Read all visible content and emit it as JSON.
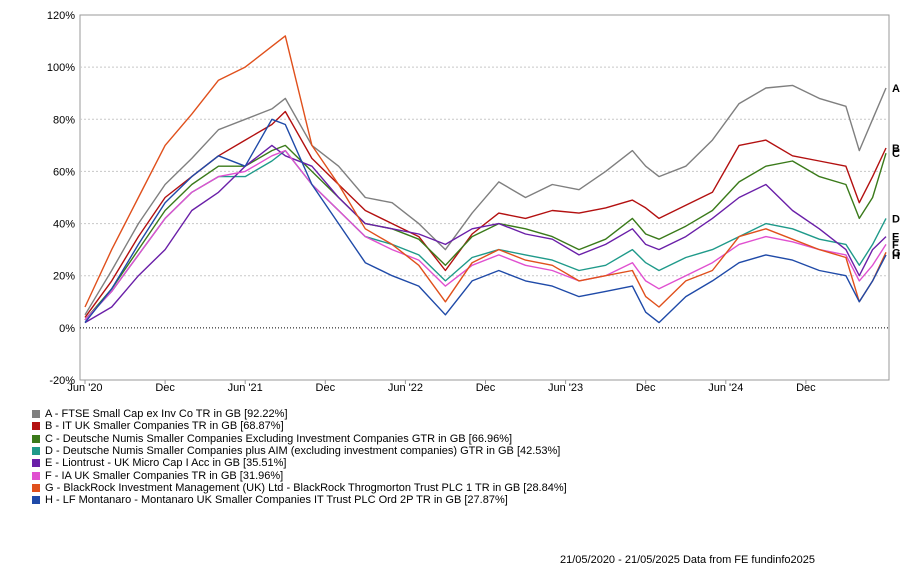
{
  "chart_data": {
    "type": "line",
    "ylim": [
      -20,
      120
    ],
    "yticks": [
      "-20%",
      "0%",
      "20%",
      "40%",
      "60%",
      "80%",
      "100%",
      "120%"
    ],
    "ytick_values": [
      -20,
      0,
      20,
      40,
      60,
      80,
      100,
      120
    ],
    "xticks": [
      "Jun '20",
      "Dec",
      "Jun '21",
      "Dec",
      "Jun '22",
      "Dec",
      "Jun '23",
      "Dec",
      "Jun '24",
      "Dec"
    ],
    "xtick_months": [
      0,
      6,
      12,
      18,
      24,
      30,
      36,
      42,
      48,
      54
    ],
    "x_months": [
      0,
      2,
      4,
      6,
      8,
      10,
      12,
      14,
      15,
      17,
      19,
      21,
      23,
      25,
      27,
      29,
      31,
      33,
      35,
      37,
      39,
      41,
      42,
      43,
      45,
      47,
      49,
      51,
      53,
      55,
      57,
      58,
      59,
      60
    ],
    "grid": true,
    "legend_position": "bottom",
    "series": [
      {
        "name": "A - FTSE Small Cap ex Inv Co TR in GB [92.22%]",
        "label": "A",
        "color": "#7f7f7f",
        "values": [
          5,
          22,
          40,
          55,
          65,
          76,
          80,
          84,
          88,
          70,
          62,
          50,
          48,
          40,
          30,
          44,
          56,
          50,
          55,
          53,
          60,
          68,
          62,
          58,
          62,
          72,
          86,
          92,
          93,
          88,
          85,
          68,
          80,
          92
        ]
      },
      {
        "name": "B - IT UK Smaller Companies TR in GB [68.87%]",
        "label": "B",
        "color": "#b31010",
        "values": [
          4,
          18,
          35,
          50,
          58,
          66,
          72,
          78,
          83,
          65,
          55,
          45,
          40,
          35,
          22,
          36,
          44,
          42,
          45,
          44,
          46,
          49,
          46,
          42,
          47,
          52,
          70,
          72,
          66,
          64,
          62,
          48,
          58,
          69
        ]
      },
      {
        "name": "C - Deutsche Numis Smaller Companies Excluding Investment Companies GTR in GB [66.96%]",
        "label": "C",
        "color": "#3a7a1a",
        "values": [
          3,
          15,
          30,
          45,
          55,
          62,
          62,
          68,
          70,
          60,
          50,
          40,
          38,
          34,
          24,
          35,
          40,
          38,
          35,
          30,
          34,
          42,
          36,
          34,
          39,
          45,
          56,
          62,
          64,
          58,
          55,
          42,
          50,
          67
        ]
      },
      {
        "name": "D - Deutsche Numis Smaller Companies plus AIM (excluding investment companies) GTR in GB [42.53%]",
        "label": "D",
        "color": "#1f9a8a",
        "values": [
          3,
          14,
          28,
          42,
          52,
          58,
          58,
          64,
          68,
          55,
          45,
          35,
          32,
          28,
          18,
          27,
          30,
          28,
          26,
          22,
          24,
          30,
          25,
          22,
          27,
          30,
          35,
          40,
          38,
          34,
          32,
          24,
          32,
          42
        ]
      },
      {
        "name": "E - Liontrust - UK Micro Cap I Acc in GB [35.51%]",
        "label": "E",
        "color": "#6a1fa8",
        "values": [
          2,
          8,
          20,
          30,
          45,
          52,
          62,
          70,
          66,
          62,
          50,
          40,
          38,
          36,
          32,
          38,
          40,
          36,
          34,
          28,
          32,
          38,
          32,
          30,
          35,
          42,
          50,
          55,
          45,
          38,
          30,
          20,
          30,
          35
        ]
      },
      {
        "name": "F - IA UK Smaller Companies TR in GB [31.96%]",
        "label": "F",
        "color": "#e050d0",
        "values": [
          3,
          14,
          28,
          42,
          52,
          58,
          60,
          66,
          68,
          55,
          45,
          35,
          30,
          26,
          16,
          24,
          28,
          24,
          22,
          18,
          20,
          25,
          18,
          15,
          20,
          25,
          32,
          35,
          33,
          30,
          28,
          18,
          24,
          32
        ]
      },
      {
        "name": "G - BlackRock Investment Management (UK) Ltd - BlackRock Throgmorton Trust PLC 1 TR in GB [28.84%]",
        "label": "G",
        "color": "#e0501c",
        "values": [
          8,
          30,
          50,
          70,
          82,
          95,
          100,
          108,
          112,
          70,
          55,
          38,
          32,
          24,
          10,
          25,
          30,
          26,
          24,
          18,
          20,
          22,
          12,
          8,
          18,
          22,
          35,
          38,
          34,
          30,
          27,
          10,
          18,
          29
        ]
      },
      {
        "name": "H - LF Montanaro - Montanaro UK Smaller Companies IT Trust PLC Ord 2P TR in GB [27.87%]",
        "label": "H",
        "color": "#1f4aa8",
        "values": [
          2,
          15,
          32,
          48,
          58,
          66,
          62,
          80,
          78,
          55,
          40,
          25,
          20,
          16,
          5,
          18,
          22,
          18,
          16,
          12,
          14,
          16,
          6,
          2,
          12,
          18,
          25,
          28,
          26,
          22,
          20,
          10,
          18,
          28
        ]
      }
    ]
  },
  "footer": "21/05/2020 - 21/05/2025 Data from FE fundinfo2025"
}
